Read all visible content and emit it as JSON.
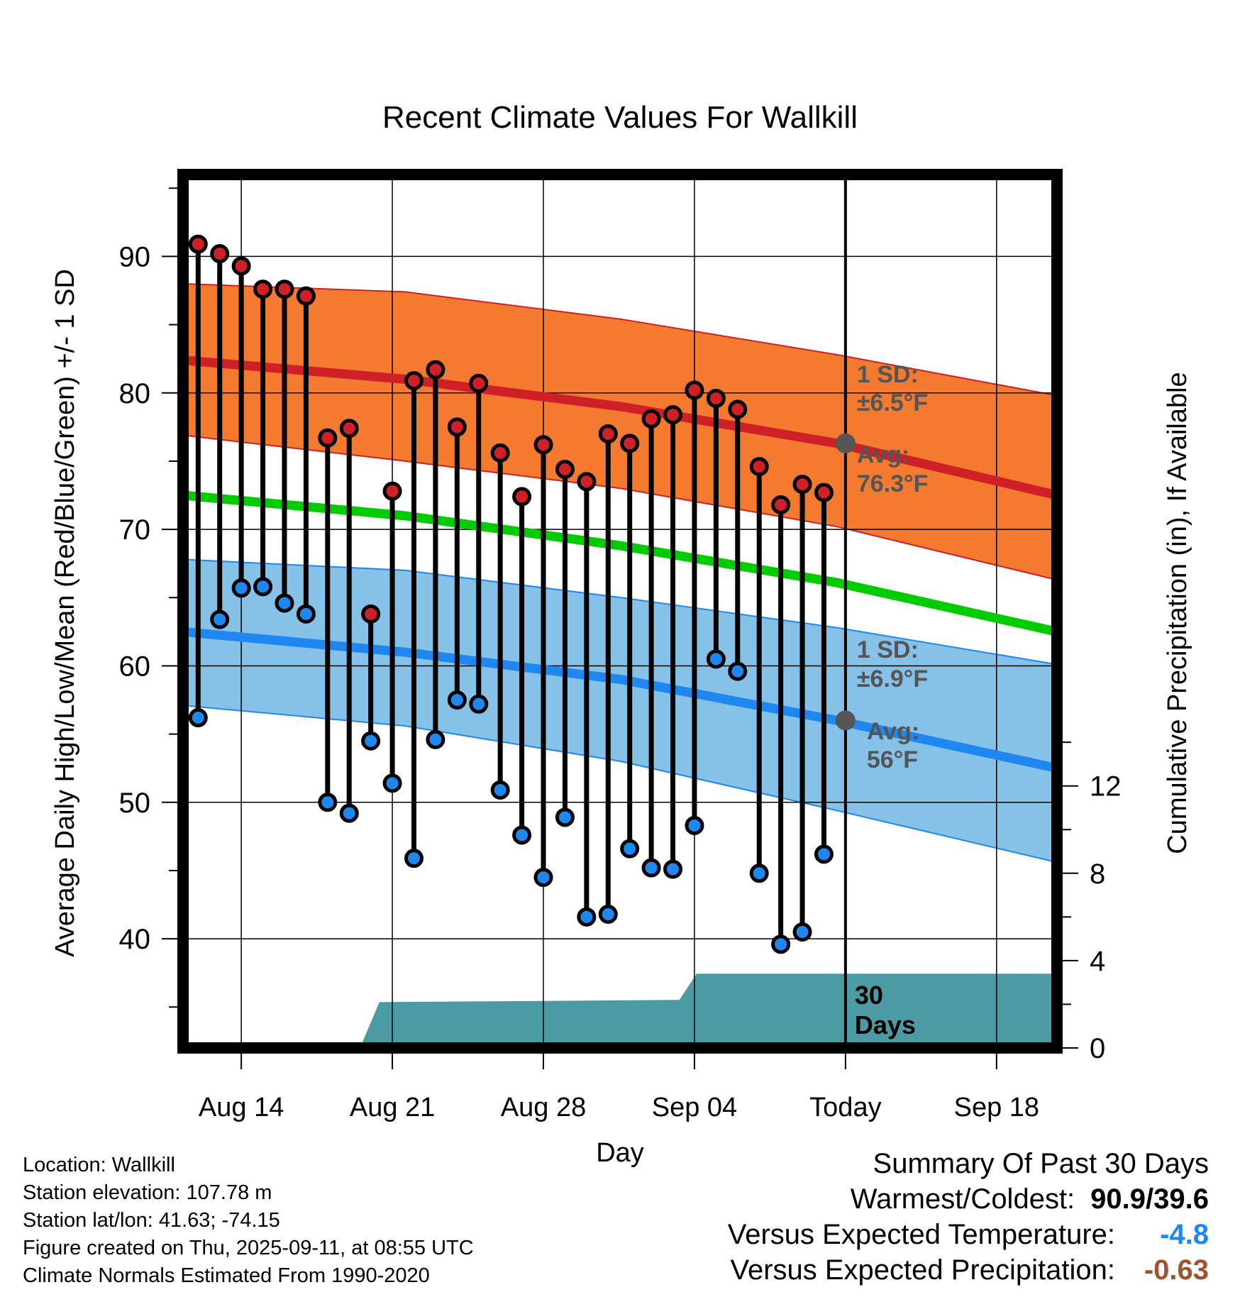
{
  "chart_data": {
    "type": "line",
    "title": "Recent Climate Values For Wallkill",
    "xlabel": "Day",
    "ylabel_left": "Average Daily High/Low/Mean (Red/Blue/Green) +/- 1 SD",
    "ylabel_right": "Cumulative Precipitation (in), If Available",
    "ylim_left": [
      32,
      96
    ],
    "ylim_right": [
      0,
      40
    ],
    "left_ticks": [
      40,
      50,
      60,
      70,
      80,
      90
    ],
    "right_ticks": [
      0,
      4,
      8,
      12
    ],
    "x_tick_labels": [
      "Aug 14",
      "Aug 21",
      "Aug 28",
      "Sep 04",
      "Today",
      "Sep 18"
    ],
    "x_tick_days": [
      14,
      21,
      28,
      35,
      42,
      49
    ],
    "xlim_days": [
      11.3,
      51.8
    ],
    "today_day": 42,
    "grid": true,
    "days": [
      12,
      13,
      14,
      15,
      16,
      17,
      18,
      19,
      20,
      21,
      22,
      23,
      24,
      25,
      26,
      27,
      28,
      29,
      30,
      31,
      32,
      33,
      34,
      35,
      36,
      37,
      38,
      39,
      40,
      41
    ],
    "highs": [
      90.9,
      90.2,
      89.3,
      87.6,
      87.6,
      87.1,
      76.7,
      77.4,
      63.8,
      72.8,
      80.9,
      81.7,
      77.5,
      80.7,
      75.6,
      72.4,
      76.2,
      74.4,
      73.5,
      77.0,
      76.3,
      78.1,
      78.4,
      80.2,
      79.6,
      78.8,
      74.6,
      71.8,
      73.3,
      72.7
    ],
    "lows": [
      56.2,
      63.4,
      65.7,
      65.8,
      64.6,
      63.8,
      50.0,
      49.2,
      54.5,
      51.4,
      45.9,
      54.6,
      57.5,
      57.2,
      50.9,
      47.6,
      44.5,
      48.9,
      41.6,
      41.8,
      46.6,
      45.2,
      45.1,
      48.3,
      60.5,
      59.6,
      44.8,
      39.6,
      40.5,
      46.2
    ],
    "normal_high_mean": {
      "x": [
        11.3,
        21.6,
        31.6,
        41.6,
        51.8
      ],
      "y": [
        82.4,
        81.0,
        79.0,
        76.3,
        72.5
      ]
    },
    "normal_high_upper": {
      "x": [
        11.3,
        21.6,
        31.6,
        41.6,
        51.8
      ],
      "y": [
        88.0,
        87.4,
        85.4,
        82.8,
        79.8
      ]
    },
    "normal_high_lower": {
      "x": [
        11.3,
        21.6,
        31.6,
        41.6,
        51.8
      ],
      "y": [
        76.9,
        75.0,
        73.0,
        70.2,
        66.3
      ]
    },
    "normal_mean": {
      "x": [
        11.3,
        21.6,
        31.6,
        41.6,
        51.8
      ],
      "y": [
        72.5,
        71.0,
        68.8,
        66.1,
        62.5
      ]
    },
    "normal_low_mean": {
      "x": [
        11.3,
        21.6,
        31.6,
        41.6,
        51.8
      ],
      "y": [
        62.5,
        61.0,
        59.0,
        56.0,
        52.5
      ]
    },
    "normal_low_upper": {
      "x": [
        11.3,
        21.6,
        31.6,
        41.6,
        51.8
      ],
      "y": [
        67.8,
        67.0,
        65.0,
        62.8,
        60.1
      ]
    },
    "normal_low_lower": {
      "x": [
        11.3,
        21.6,
        31.6,
        41.6,
        51.8
      ],
      "y": [
        57.1,
        55.6,
        53.0,
        49.4,
        45.6
      ]
    },
    "precip_cumulative": {
      "x": [
        11.3,
        19.5,
        20.4,
        34.3,
        35.1,
        51.8
      ],
      "y": [
        0,
        0,
        2.1,
        2.2,
        3.4,
        3.4
      ]
    },
    "annotations": {
      "high_sd_label": "1 SD:",
      "high_sd_value": "±6.5°F",
      "high_avg_label": "Avg:",
      "high_avg_value": "76.3°F",
      "low_sd_label": "1 SD:",
      "low_sd_value": "±6.9°F",
      "low_avg_label": "Avg:",
      "low_avg_value": "56°F",
      "days_number": "30",
      "days_word": "Days"
    },
    "colors": {
      "high_band": "#f47a30",
      "high_line": "#cf2027",
      "low_band": "#86c1e8",
      "low_line": "#1e88f0",
      "mean_line": "#00cc00",
      "precip_fill": "#4a9ba3",
      "high_marker": "#cf2027",
      "low_marker": "#1e88f0",
      "avg_marker": "#555555",
      "annotation_text": "#555555"
    }
  },
  "info": {
    "location": "Location: Wallkill",
    "elevation": "Station elevation: 107.78 m",
    "latlon": "Station lat/lon: 41.63; -74.15",
    "created": "Figure created on Thu, 2025-09-11, at 08:55 UTC",
    "normals": "Climate Normals Estimated From 1990-2020"
  },
  "summary": {
    "heading": "Summary Of Past 30 Days",
    "warm_cold_label": "Warmest/Coldest:",
    "warm_cold_value": "90.9/39.6",
    "temp_label": "Versus Expected Temperature:",
    "temp_value": "-4.8",
    "temp_color": "#1e88f0",
    "precip_label": "Versus Expected Precipitation:",
    "precip_value": "-0.63",
    "precip_color": "#a0522d"
  }
}
